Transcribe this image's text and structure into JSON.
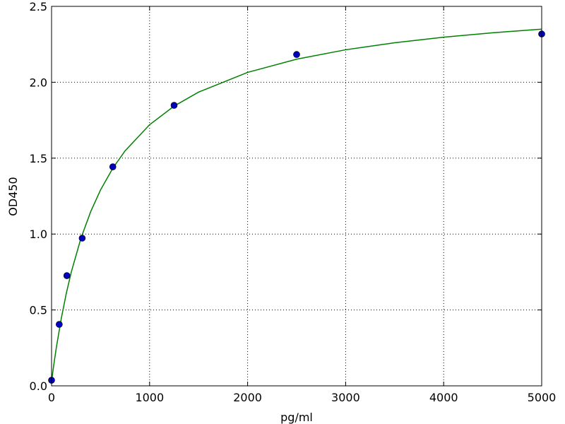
{
  "chart_data": {
    "type": "scatter",
    "xlabel": "pg/ml",
    "ylabel": "OD450",
    "xlim": [
      0,
      5000
    ],
    "ylim": [
      0,
      2.5
    ],
    "xticks": [
      0,
      1000,
      2000,
      3000,
      4000,
      5000
    ],
    "yticks": [
      {
        "value": 0,
        "label": "0.0"
      },
      0.5,
      {
        "value": 1,
        "label": "1.0"
      },
      1.5,
      {
        "value": 2,
        "label": "2.0"
      },
      2.5
    ],
    "grid": true,
    "series": [
      {
        "type": "line",
        "color": "#008000",
        "x": [
          0,
          25,
          50,
          100,
          150,
          200,
          300,
          400,
          500,
          625,
          750,
          1000,
          1250,
          1500,
          2000,
          2500,
          3000,
          3500,
          4000,
          4500,
          5000
        ],
        "values": [
          0.03,
          0.149,
          0.257,
          0.447,
          0.608,
          0.747,
          0.973,
          1.149,
          1.291,
          1.434,
          1.548,
          1.72,
          1.843,
          1.935,
          2.065,
          2.152,
          2.214,
          2.26,
          2.297,
          2.326,
          2.35
        ]
      },
      {
        "type": "scatter",
        "color": "#0000bf",
        "x": [
          0,
          78.125,
          156.25,
          312.5,
          625,
          1250,
          2500,
          5000
        ],
        "values": [
          0.037,
          0.405,
          0.726,
          0.973,
          1.443,
          1.848,
          2.183,
          2.318
        ]
      }
    ]
  }
}
